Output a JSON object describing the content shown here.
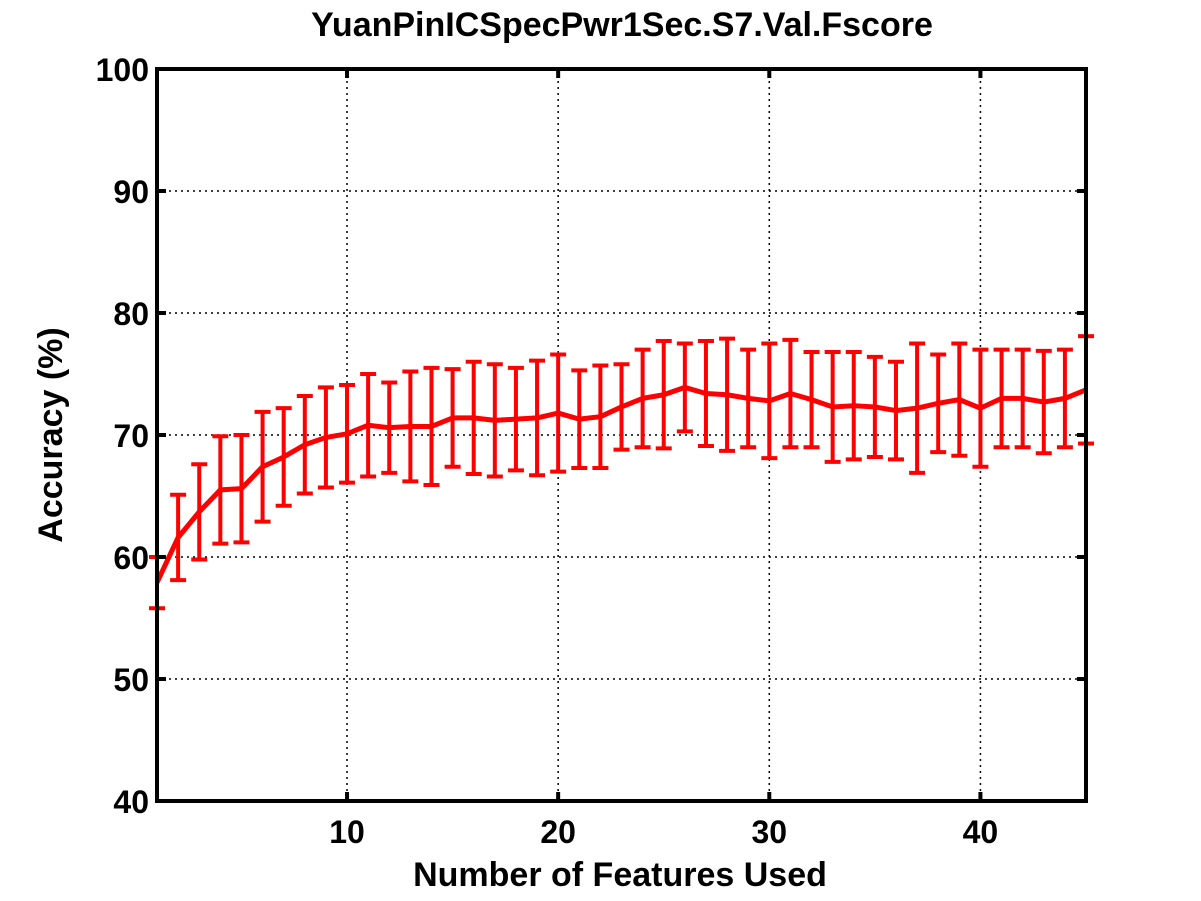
{
  "chart_data": {
    "type": "line",
    "title": "YuanPinICSpecPwr1Sec.S7.Val.Fscore",
    "xlabel": "Number of Features Used",
    "ylabel": "Accuracy (%)",
    "xlim": [
      1,
      45
    ],
    "ylim": [
      40,
      100
    ],
    "xticks": [
      10,
      20,
      30,
      40
    ],
    "yticks": [
      40,
      50,
      60,
      70,
      80,
      90,
      100
    ],
    "grid": true,
    "series": [
      {
        "color": "#ff0000",
        "x": [
          1,
          2,
          3,
          4,
          5,
          6,
          7,
          8,
          9,
          10,
          11,
          12,
          13,
          14,
          15,
          16,
          17,
          18,
          19,
          20,
          21,
          22,
          23,
          24,
          25,
          26,
          27,
          28,
          29,
          30,
          31,
          32,
          33,
          34,
          35,
          36,
          37,
          38,
          39,
          40,
          41,
          42,
          43,
          44,
          45
        ],
        "y": [
          57.9,
          61.6,
          63.7,
          65.5,
          65.6,
          67.4,
          68.2,
          69.2,
          69.8,
          70.1,
          70.8,
          70.6,
          70.7,
          70.7,
          71.4,
          71.4,
          71.2,
          71.3,
          71.4,
          71.8,
          71.3,
          71.5,
          72.3,
          73.0,
          73.3,
          73.9,
          73.4,
          73.3,
          73.0,
          72.8,
          73.4,
          72.9,
          72.3,
          72.4,
          72.3,
          72.0,
          72.2,
          72.6,
          72.9,
          72.2,
          73.0,
          73.0,
          72.7,
          73.0,
          73.7
        ],
        "lower": [
          55.8,
          58.1,
          59.8,
          61.1,
          61.2,
          62.9,
          64.2,
          65.2,
          65.7,
          66.1,
          66.6,
          66.9,
          66.2,
          65.9,
          67.4,
          66.8,
          66.6,
          67.1,
          66.7,
          67.0,
          67.3,
          67.3,
          68.8,
          69.0,
          68.9,
          70.3,
          69.1,
          68.7,
          69.0,
          68.1,
          69.0,
          69.0,
          67.8,
          68.0,
          68.2,
          68.0,
          66.9,
          68.6,
          68.3,
          67.4,
          69.0,
          69.0,
          68.5,
          69.0,
          69.3
        ],
        "upper": [
          60.0,
          65.1,
          67.6,
          69.9,
          70.0,
          71.9,
          72.2,
          73.2,
          73.9,
          74.1,
          75.0,
          74.3,
          75.2,
          75.5,
          75.4,
          76.0,
          75.8,
          75.5,
          76.1,
          76.6,
          75.3,
          75.7,
          75.8,
          77.0,
          77.7,
          77.5,
          77.7,
          77.9,
          77.0,
          77.5,
          77.8,
          76.8,
          76.8,
          76.8,
          76.4,
          76.0,
          77.5,
          76.6,
          77.5,
          77.0,
          77.0,
          77.0,
          76.9,
          77.0,
          78.1
        ]
      }
    ]
  }
}
